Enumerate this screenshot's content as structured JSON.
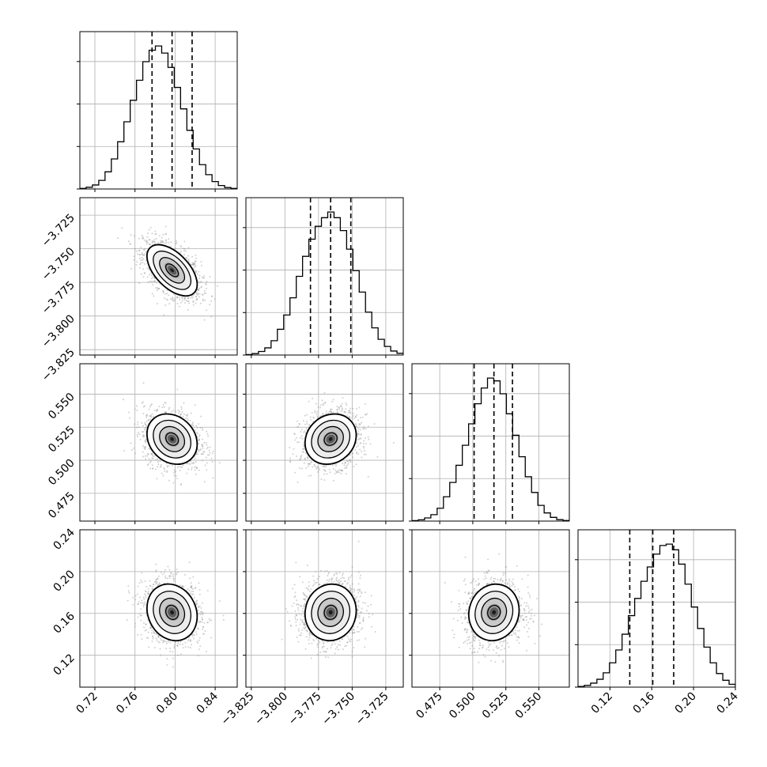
{
  "chart_data": {
    "type": "corner",
    "n_params": 4,
    "params": [
      {
        "ticks": [
          0.72,
          0.76,
          0.8,
          0.84
        ],
        "tick_labels": [
          "0.72",
          "0.76",
          "0.80",
          "0.84"
        ],
        "range": [
          0.705,
          0.862
        ],
        "quantiles": [
          0.777,
          0.797,
          0.817
        ],
        "mean": 0.797,
        "sd": 0.0125
      },
      {
        "ticks": [
          -3.825,
          -3.8,
          -3.775,
          -3.75,
          -3.725
        ],
        "tick_labels": [
          "−3.825",
          "−3.800",
          "−3.775",
          "−3.750",
          "−3.725"
        ],
        "range": [
          -3.829,
          -3.712
        ],
        "quantiles": [
          -3.781,
          -3.766,
          -3.751
        ],
        "mean": -3.766,
        "sd": 0.0095
      },
      {
        "ticks": [
          0.475,
          0.5,
          0.525,
          0.55
        ],
        "tick_labels": [
          "0.475",
          "0.500",
          "0.525",
          "0.550"
        ],
        "range": [
          0.454,
          0.573
        ],
        "quantiles": [
          0.501,
          0.516,
          0.53
        ],
        "mean": 0.516,
        "sd": 0.0095
      },
      {
        "ticks": [
          0.12,
          0.16,
          0.2,
          0.24
        ],
        "tick_labels": [
          "0.12",
          "0.16",
          "0.20",
          "0.24"
        ],
        "range": [
          0.0895,
          0.24
        ],
        "quantiles": [
          0.139,
          0.161,
          0.181
        ],
        "mean": 0.161,
        "sd": 0.0135
      }
    ],
    "correlations": {
      "1-0": -0.55,
      "2-0": -0.2,
      "2-1": 0.15,
      "3-0": -0.15,
      "3-1": 0.05,
      "3-2": 0.08
    },
    "histograms": [
      [
        0.004,
        0.012,
        0.028,
        0.06,
        0.12,
        0.21,
        0.33,
        0.47,
        0.62,
        0.76,
        0.89,
        0.97,
        1.0,
        0.95,
        0.85,
        0.71,
        0.56,
        0.41,
        0.28,
        0.17,
        0.1,
        0.052,
        0.024,
        0.01,
        0.004
      ],
      [
        0.003,
        0.01,
        0.025,
        0.05,
        0.1,
        0.18,
        0.28,
        0.4,
        0.55,
        0.69,
        0.81,
        0.9,
        0.96,
        1.0,
        0.96,
        0.87,
        0.74,
        0.59,
        0.44,
        0.3,
        0.19,
        0.11,
        0.06,
        0.028,
        0.012
      ],
      [
        0.003,
        0.009,
        0.022,
        0.045,
        0.09,
        0.17,
        0.27,
        0.39,
        0.53,
        0.68,
        0.82,
        0.93,
        1.0,
        0.98,
        0.89,
        0.75,
        0.6,
        0.45,
        0.31,
        0.2,
        0.11,
        0.057,
        0.026,
        0.01,
        0.004
      ],
      [
        0.005,
        0.012,
        0.028,
        0.055,
        0.1,
        0.17,
        0.26,
        0.37,
        0.5,
        0.62,
        0.74,
        0.84,
        0.93,
        0.99,
        1.0,
        0.96,
        0.86,
        0.72,
        0.56,
        0.41,
        0.28,
        0.17,
        0.095,
        0.048,
        0.02
      ]
    ],
    "contour_levels_sigma": [
      0.5,
      1.0,
      1.5,
      2.0
    ],
    "quantile_line_style": "dashed",
    "grid": true,
    "scatter_color": "#999999",
    "line_color": "#000000"
  }
}
